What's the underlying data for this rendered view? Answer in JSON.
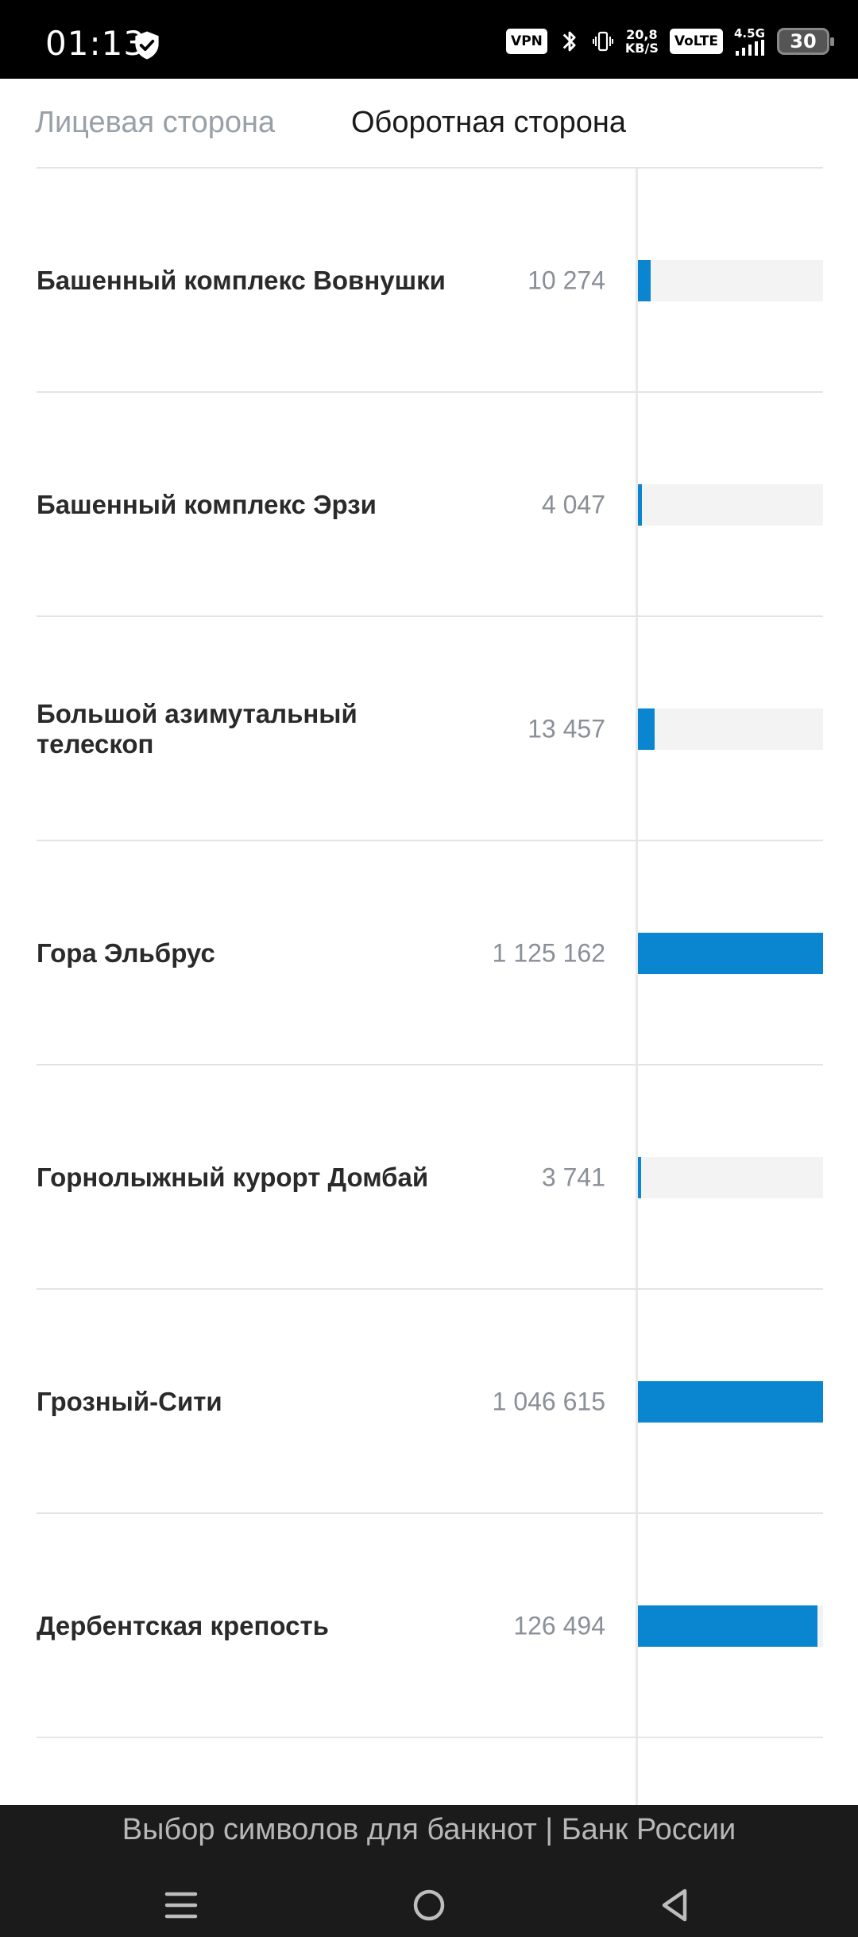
{
  "status_bar": {
    "time": "01:13",
    "vpn_label": "VPN",
    "speed_value": "20,8",
    "speed_unit": "KB/S",
    "volte_label": "VoLTE",
    "network_label": "4.5G",
    "battery_level": "30",
    "icons": [
      "shield-check-icon",
      "bluetooth-icon",
      "vibrate-icon",
      "signal-icon"
    ]
  },
  "tabs": [
    {
      "label": "Лицевая сторона",
      "active": false
    },
    {
      "label": "Оборотная сторона",
      "active": true
    }
  ],
  "list": {
    "bar_color": "#0a86d0",
    "items": [
      {
        "label": "Башенный комплекс Вовнушки",
        "value_text": "10 274",
        "bar_fill_fraction": 0.07
      },
      {
        "label": "Башенный комплекс Эрзи",
        "value_text": "4 047",
        "bar_fill_fraction": 0.02
      },
      {
        "label": "Большой азимутальный телескоп",
        "value_text": "13 457",
        "bar_fill_fraction": 0.09
      },
      {
        "label": "Гора Эльбрус",
        "value_text": "1 125 162",
        "bar_fill_fraction": 1.0
      },
      {
        "label": "Горнолыжный курорт Домбай",
        "value_text": "3 741",
        "bar_fill_fraction": 0.01
      },
      {
        "label": "Грозный-Сити",
        "value_text": "1 046 615",
        "bar_fill_fraction": 1.0
      },
      {
        "label": "Дербентская крепость",
        "value_text": "126 494",
        "bar_fill_fraction": 0.97
      }
    ]
  },
  "footer": {
    "page_title": "Выбор символов для банкнот | Банк России"
  },
  "nav_bar": {
    "icons": [
      "menu-icon",
      "home-icon",
      "back-icon"
    ]
  }
}
